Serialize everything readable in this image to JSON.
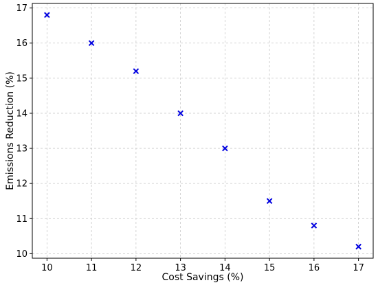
{
  "chart_data": {
    "type": "scatter",
    "title": "",
    "xlabel": "Cost Savings (%)",
    "ylabel": "Emissions Reduction (%)",
    "xlim": [
      9.67,
      17.33
    ],
    "ylim": [
      9.87,
      17.13
    ],
    "xticks": [
      "10",
      "11",
      "12",
      "13",
      "14",
      "15",
      "16",
      "17"
    ],
    "yticks": [
      "10",
      "11",
      "12",
      "13",
      "14",
      "15",
      "16",
      "17"
    ],
    "grid": true,
    "legend": "none",
    "marker": "x",
    "marker_color": "#0000e0",
    "series": [
      {
        "x": [
          10,
          11,
          12,
          13,
          14,
          15,
          16,
          17
        ],
        "y": [
          16.8,
          16.0,
          15.2,
          14.0,
          13.0,
          11.5,
          10.8,
          10.2
        ]
      }
    ]
  }
}
